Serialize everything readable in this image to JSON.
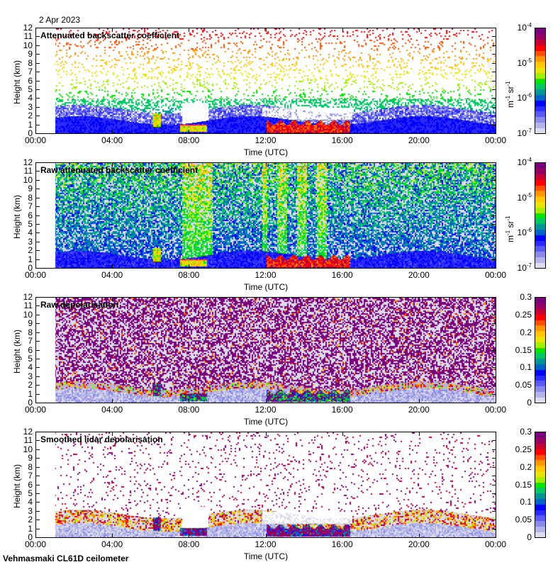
{
  "date_label": "2 Apr 2023",
  "footer": "Vehmasmaki CL61D ceilometer",
  "colors": {
    "colormap": [
      "#dcdcec",
      "#b4b4e8",
      "#8a8ae8",
      "#5a5af0",
      "#2a2aff",
      "#0000ff",
      "#0064c8",
      "#009696",
      "#00c864",
      "#00e600",
      "#a0f000",
      "#e6e600",
      "#ffc800",
      "#ff9600",
      "#ff5000",
      "#ff0000",
      "#c80032",
      "#960064",
      "#780078"
    ]
  },
  "chart_data": [
    {
      "type": "heatmap",
      "title": "Attenuated backscatter coefficient",
      "xlabel": "Time (UTC)",
      "ylabel": "Height (km)",
      "x_ticks": [
        "00:00",
        "04:00",
        "08:00",
        "12:00",
        "16:00",
        "20:00",
        "00:00"
      ],
      "x_range_hours": [
        0,
        24
      ],
      "y_ticks": [
        "0",
        "1",
        "2",
        "3",
        "4",
        "5",
        "6",
        "7",
        "8",
        "9",
        "10",
        "11",
        "12"
      ],
      "y_range_km": [
        0,
        12
      ],
      "data_start_hour": 1,
      "colorbar": {
        "scale": "log",
        "range": [
          1e-07,
          0.0001
        ],
        "ticks": [
          {
            "base": "10",
            "exp": "-4"
          },
          {
            "base": "10",
            "exp": "-5"
          },
          {
            "base": "10",
            "exp": "-6"
          },
          {
            "base": "10",
            "exp": "-7"
          }
        ],
        "unit": {
          "m": "m",
          "m_exp": "-1",
          "sr": "sr",
          "sr_exp": "-1"
        }
      },
      "kind": "backscatter"
    },
    {
      "type": "heatmap",
      "title": "Raw attenuated backscatter coefficient",
      "xlabel": "Time (UTC)",
      "ylabel": "Height (km)",
      "x_ticks": [
        "00:00",
        "04:00",
        "08:00",
        "12:00",
        "16:00",
        "20:00",
        "00:00"
      ],
      "x_range_hours": [
        0,
        24
      ],
      "y_ticks": [
        "0",
        "1",
        "2",
        "3",
        "4",
        "5",
        "6",
        "7",
        "8",
        "9",
        "10",
        "11",
        "12"
      ],
      "y_range_km": [
        0,
        12
      ],
      "data_start_hour": 1,
      "colorbar": {
        "scale": "log",
        "range": [
          1e-07,
          0.0001
        ],
        "ticks": [
          {
            "base": "10",
            "exp": "-4"
          },
          {
            "base": "10",
            "exp": "-5"
          },
          {
            "base": "10",
            "exp": "-6"
          },
          {
            "base": "10",
            "exp": "-7"
          }
        ],
        "unit": {
          "m": "m",
          "m_exp": "-1",
          "sr": "sr",
          "sr_exp": "-1"
        }
      },
      "kind": "raw_backscatter"
    },
    {
      "type": "heatmap",
      "title": "Raw depolarisation",
      "xlabel": "Time (UTC)",
      "ylabel": "Height (km)",
      "x_ticks": [
        "00:00",
        "04:00",
        "08:00",
        "12:00",
        "16:00",
        "20:00",
        "00:00"
      ],
      "x_range_hours": [
        0,
        24
      ],
      "y_ticks": [
        "0",
        "1",
        "2",
        "3",
        "4",
        "5",
        "6",
        "7",
        "8",
        "9",
        "10",
        "11",
        "12"
      ],
      "y_range_km": [
        0,
        12
      ],
      "data_start_hour": 1,
      "colorbar": {
        "scale": "linear",
        "range": [
          0,
          0.3
        ],
        "ticks": [
          {
            "base": "0.3"
          },
          {
            "base": "0.25"
          },
          {
            "base": "0.2"
          },
          {
            "base": "0.15"
          },
          {
            "base": "0.1"
          },
          {
            "base": "0.05"
          },
          {
            "base": "0"
          }
        ]
      },
      "kind": "raw_depol"
    },
    {
      "type": "heatmap",
      "title": "Smoothed lidar depolarisation",
      "xlabel": "Time (UTC)",
      "ylabel": "Height (km)",
      "x_ticks": [
        "00:00",
        "04:00",
        "08:00",
        "12:00",
        "16:00",
        "20:00",
        "00:00"
      ],
      "x_range_hours": [
        0,
        24
      ],
      "y_ticks": [
        "0",
        "1",
        "2",
        "3",
        "4",
        "5",
        "6",
        "7",
        "8",
        "9",
        "10",
        "11",
        "12"
      ],
      "y_range_km": [
        0,
        12
      ],
      "data_start_hour": 1,
      "colorbar": {
        "scale": "linear",
        "range": [
          0,
          0.3
        ],
        "ticks": [
          {
            "base": "0.3"
          },
          {
            "base": "0.25"
          },
          {
            "base": "0.2"
          },
          {
            "base": "0.15"
          },
          {
            "base": "0.1"
          },
          {
            "base": "0.05"
          },
          {
            "base": "0"
          }
        ]
      },
      "kind": "smooth_depol"
    }
  ]
}
